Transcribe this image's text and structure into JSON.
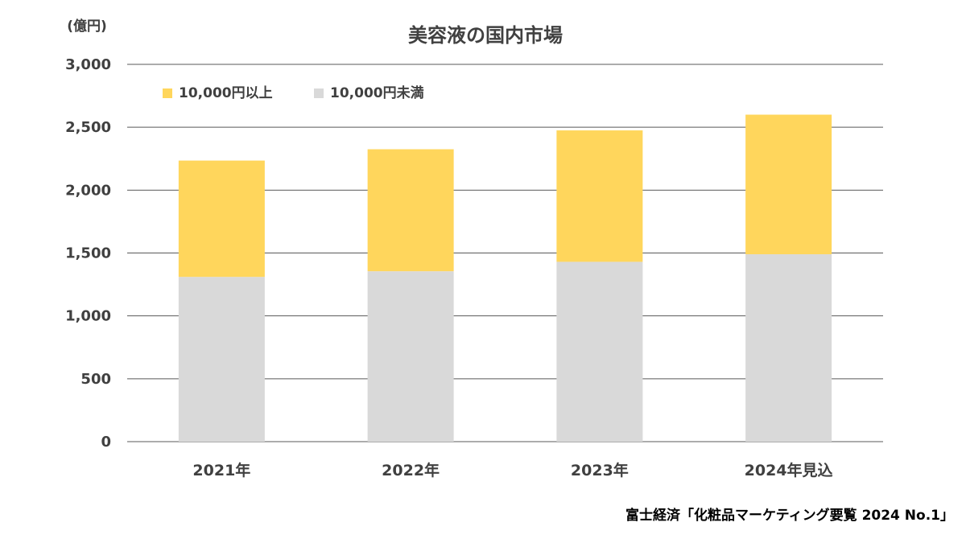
{
  "chart_data": {
    "type": "bar",
    "stacked": true,
    "title": "美容液の国内市場",
    "unit_label": "(億円)",
    "categories": [
      "2021年",
      "2022年",
      "2023年",
      "2024年見込"
    ],
    "series": [
      {
        "name": "10,000円未満",
        "values": [
          1310,
          1355,
          1430,
          1490
        ],
        "color": "#D9D9D9"
      },
      {
        "name": "10,000円以上",
        "values": [
          925,
          970,
          1045,
          1110
        ],
        "color": "#FFD65C"
      }
    ],
    "legend_order": [
      1,
      0
    ],
    "ylim": [
      0,
      3000
    ],
    "yticks": [
      0,
      500,
      1000,
      1500,
      2000,
      2500,
      3000
    ],
    "ytick_labels": [
      "0",
      "500",
      "1,000",
      "1,500",
      "2,000",
      "2,500",
      "3,000"
    ],
    "grid": true,
    "legend_position": "top-left"
  },
  "source": "富士経済「化粧品マーケティング要覧 2024 No.1」"
}
